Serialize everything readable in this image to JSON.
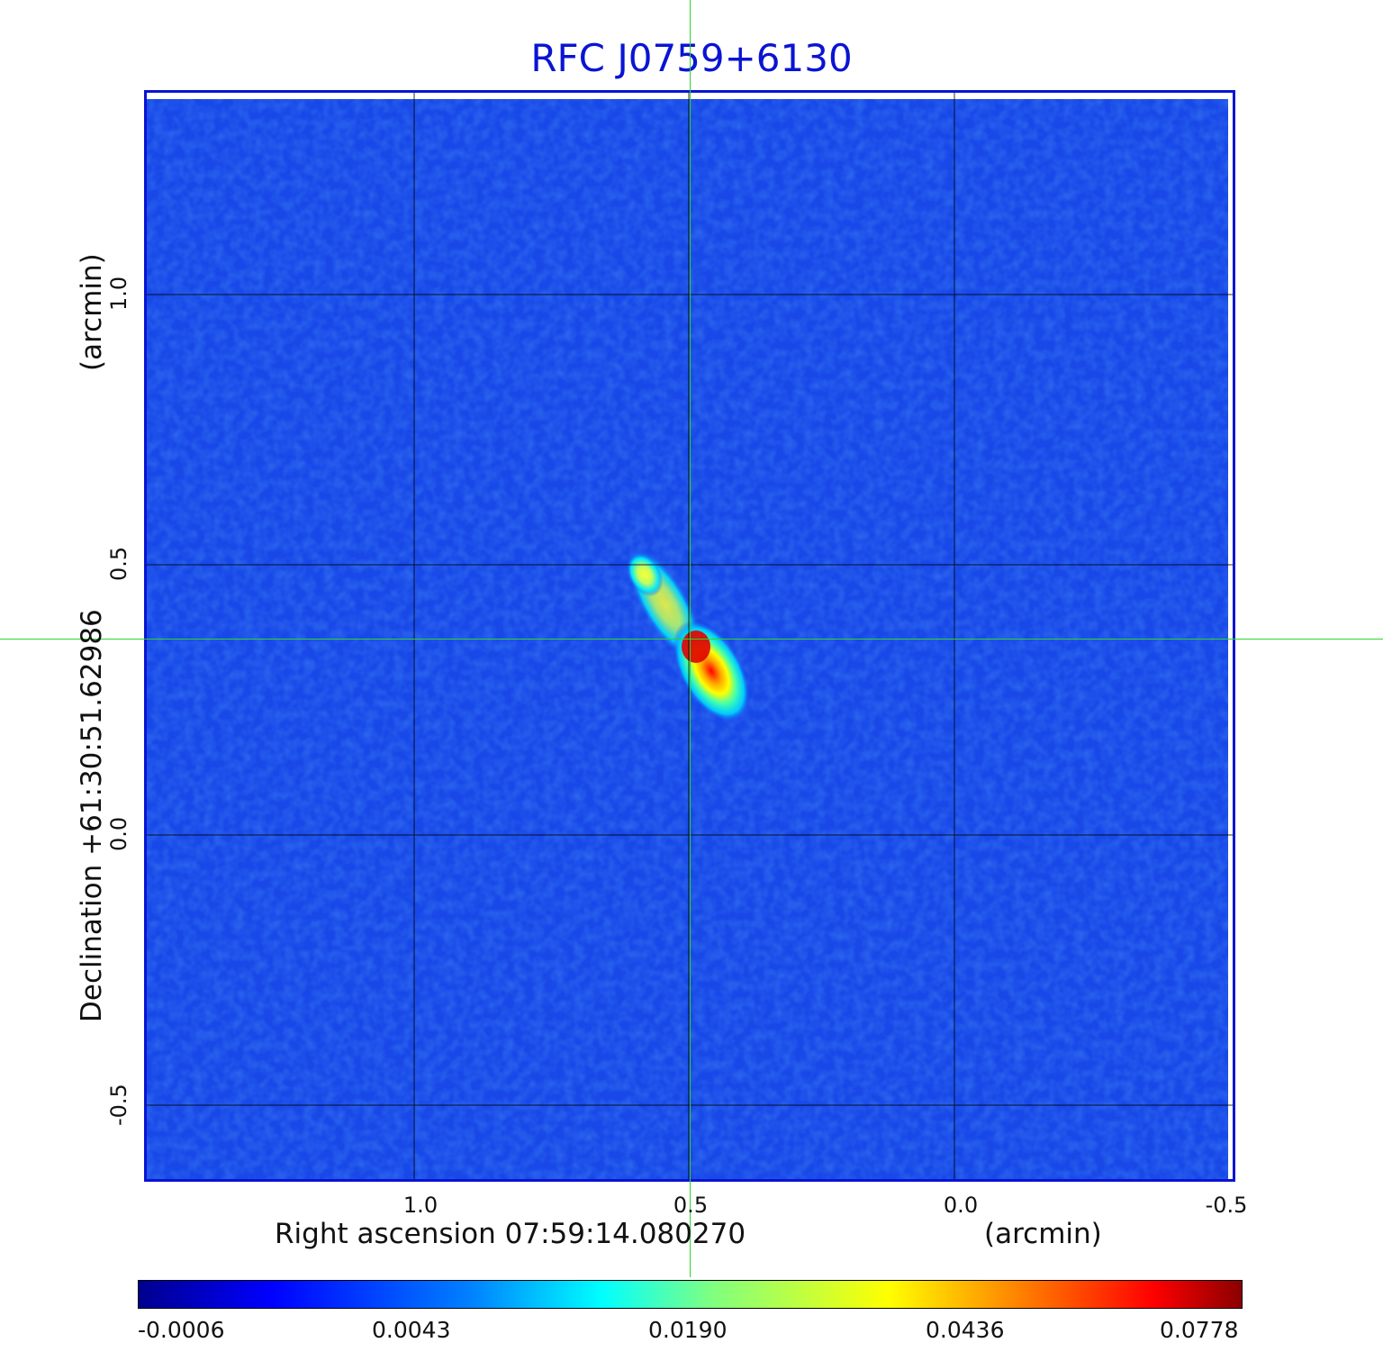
{
  "title": "RFC J0759+6130",
  "xlabel": "Right ascension  07:59:14.080270",
  "xunit": "(arcmin)",
  "ylabel": "Declination  +61:30:51.62986",
  "yunit": "(arcmin)",
  "x_ticks": [
    "1.0",
    "0.5",
    "0.0",
    "-0.5"
  ],
  "y_ticks": [
    "1.0",
    "0.5",
    "0.0",
    "-0.5"
  ],
  "colorbar": {
    "ticks": [
      "-0.0006",
      "0.0043",
      "0.0190",
      "0.0436",
      "0.0778"
    ],
    "colormap": "jet"
  },
  "colors": {
    "title": "#0a14d2",
    "frame": "#0a14d2",
    "background_field": "#1446e6",
    "crosshair": "#2fd42f"
  }
}
